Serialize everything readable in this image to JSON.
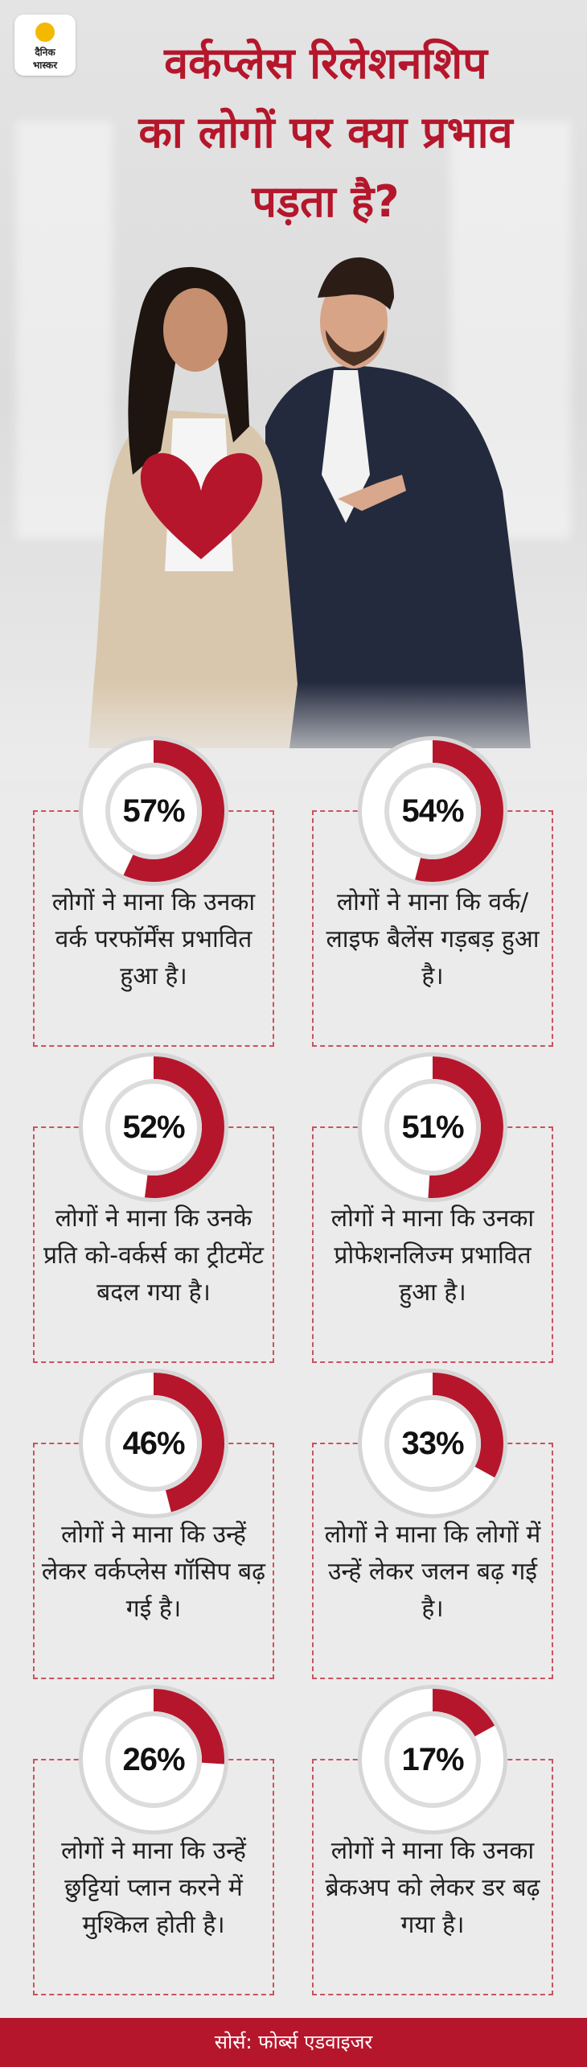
{
  "brand": {
    "line1": "दैनिक",
    "line2": "भास्कर"
  },
  "title_lines": [
    "वर्कप्लेस रिलेशनशिप",
    "का लोगों पर क्या प्रभाव",
    "पड़ता है?"
  ],
  "colors": {
    "accent": "#b5162b",
    "track": "#ffffff",
    "ring_bg": "#d8d8d8"
  },
  "chart_data": {
    "type": "pie",
    "items": [
      {
        "value": 57,
        "label": "57%",
        "text": "लोगों ने माना कि उनका वर्क परफॉर्मेंस प्रभावित हुआ है।"
      },
      {
        "value": 54,
        "label": "54%",
        "text": "लोगों ने माना कि वर्क/लाइफ बैलेंस गड़बड़ हुआ है।"
      },
      {
        "value": 52,
        "label": "52%",
        "text": "लोगों ने माना कि उनके प्रति को-वर्कर्स का ट्रीटमेंट बदल गया है।"
      },
      {
        "value": 51,
        "label": "51%",
        "text": "लोगों ने माना कि उनका प्रोफेशनलिज्म प्रभावित हुआ है।"
      },
      {
        "value": 46,
        "label": "46%",
        "text": "लोगों ने माना कि उन्हें लेकर वर्कप्लेस गॉसिप बढ़ गई है।"
      },
      {
        "value": 33,
        "label": "33%",
        "text": "लोगों ने माना कि लोगों में उन्हें लेकर जलन बढ़ गई है।"
      },
      {
        "value": 26,
        "label": "26%",
        "text": "लोगों ने माना कि उन्हें छुट्टियां प्लान करने में मुश्किल होती है।"
      },
      {
        "value": 17,
        "label": "17%",
        "text": "लोगों ने माना कि उनका ब्रेकअप को लेकर डर बढ़ गया है।"
      }
    ]
  },
  "footer": "सोर्स: फोर्ब्स एडवाइजर"
}
